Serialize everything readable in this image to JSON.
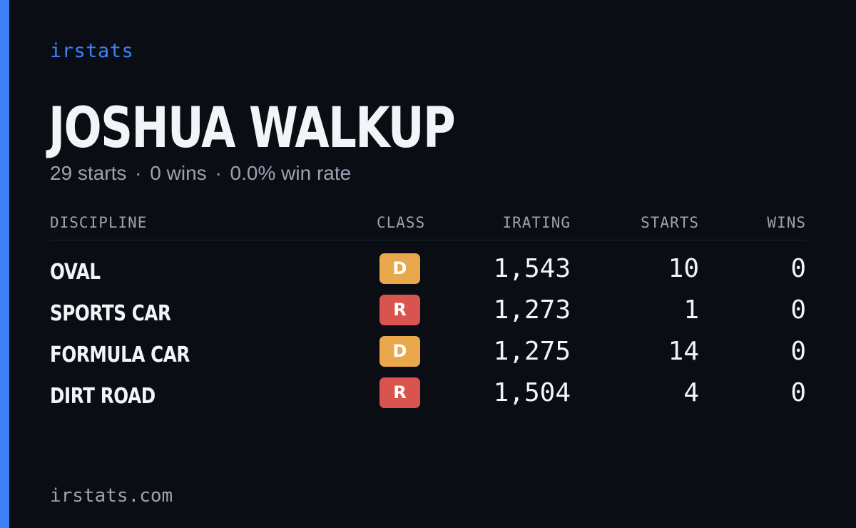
{
  "brand": "irstats",
  "driver": {
    "name": "JOSHUA WALKUP",
    "starts_text": "29 starts",
    "wins_text": "0 wins",
    "win_rate_text": "0.0% win rate",
    "separator": "·"
  },
  "table": {
    "headers": {
      "discipline": "DISCIPLINE",
      "class": "CLASS",
      "irating": "IRATING",
      "starts": "STARTS",
      "wins": "WINS"
    },
    "rows": [
      {
        "discipline": "OVAL",
        "class": "D",
        "class_color": "#e9a84c",
        "irating": "1,543",
        "starts": "10",
        "wins": "0"
      },
      {
        "discipline": "SPORTS CAR",
        "class": "R",
        "class_color": "#d9534f",
        "irating": "1,273",
        "starts": "1",
        "wins": "0"
      },
      {
        "discipline": "FORMULA CAR",
        "class": "D",
        "class_color": "#e9a84c",
        "irating": "1,275",
        "starts": "14",
        "wins": "0"
      },
      {
        "discipline": "DIRT ROAD",
        "class": "R",
        "class_color": "#d9534f",
        "irating": "1,504",
        "starts": "4",
        "wins": "0"
      }
    ]
  },
  "footer": "irstats.com",
  "colors": {
    "background": "#0b0d14",
    "accent": "#3b82f6",
    "text_primary": "#f3f4f8",
    "text_muted": "#9aa3b2"
  }
}
